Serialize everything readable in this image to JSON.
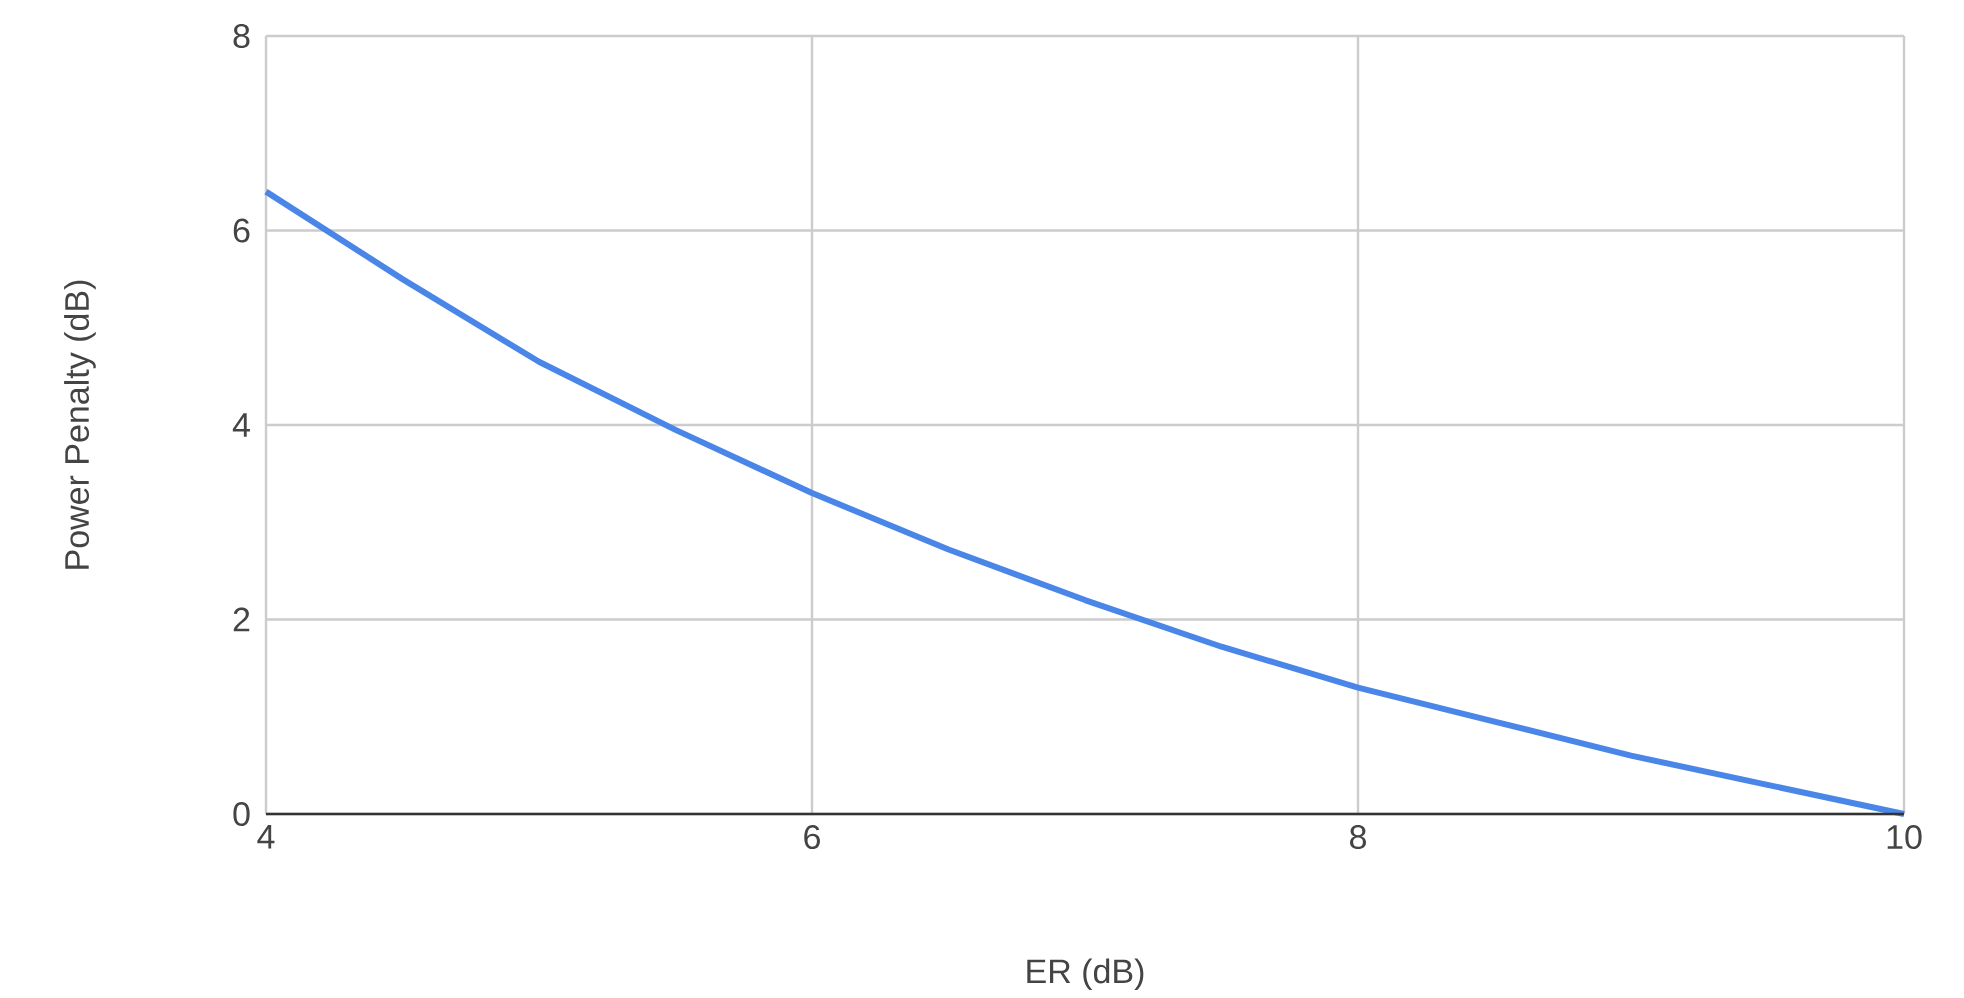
{
  "chart_data": {
    "type": "line",
    "xlabel": "ER (dB)",
    "ylabel": "Power Penalty (dB)",
    "x": [
      4,
      4.5,
      5,
      5.5,
      6,
      6.5,
      7,
      7.5,
      8,
      8.5,
      9,
      9.5,
      10
    ],
    "series": [
      {
        "color": "#4a86e8",
        "values": [
          6.4,
          5.5,
          4.65,
          3.95,
          3.3,
          2.72,
          2.2,
          1.72,
          1.3,
          0.95,
          0.6,
          0.3,
          0
        ]
      }
    ],
    "xlim": [
      4,
      10
    ],
    "ylim": [
      0,
      8
    ],
    "xticks": [
      4,
      6,
      8,
      10
    ],
    "yticks": [
      0,
      2,
      4,
      6,
      8
    ],
    "grid": true
  }
}
